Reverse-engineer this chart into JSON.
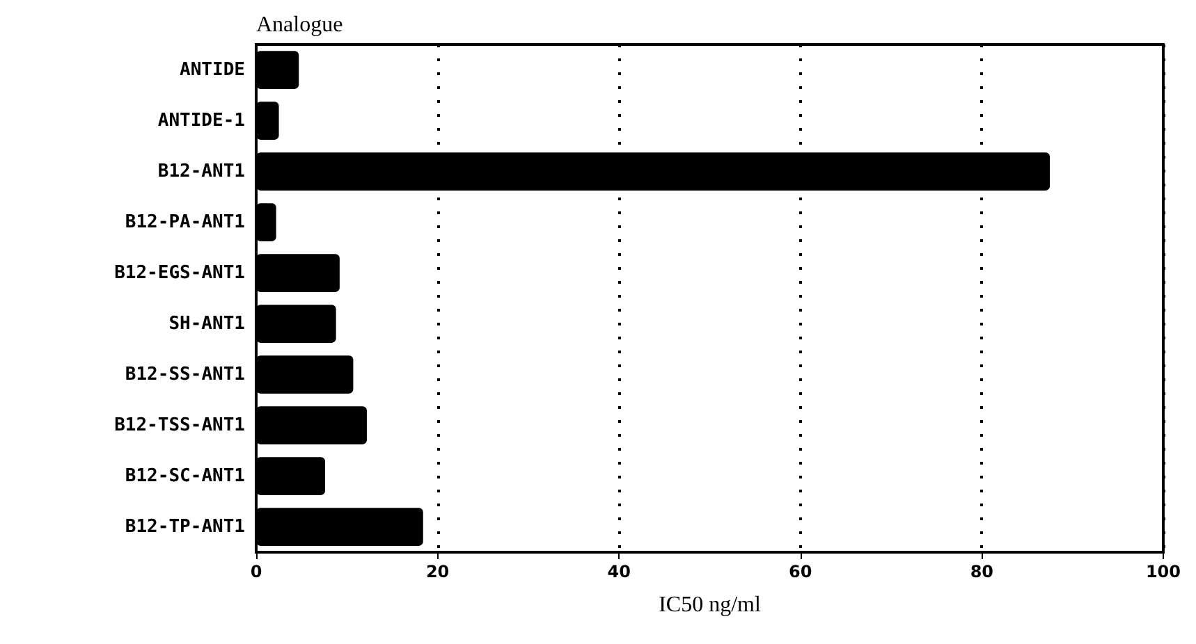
{
  "chart_data": {
    "type": "bar",
    "orientation": "horizontal",
    "ylabel": "Analogue",
    "xlabel": "IC50 ng/ml",
    "categories": [
      "ANTIDE",
      "ANTIDE-1",
      "B12-ANT1",
      "B12-PA-ANT1",
      "B12-EGS-ANT1",
      "SH-ANT1",
      "B12-SS-ANT1",
      "B12-TSS-ANT1",
      "B12-SC-ANT1",
      "B12-TP-ANT1"
    ],
    "values": [
      4.7,
      2.5,
      87.5,
      2.2,
      9.2,
      8.8,
      10.7,
      12.2,
      7.6,
      18.4
    ],
    "color": "#000000",
    "xlim": [
      0,
      100
    ],
    "xticks": [
      0,
      20,
      40,
      60,
      80,
      100
    ],
    "grid": "x"
  }
}
